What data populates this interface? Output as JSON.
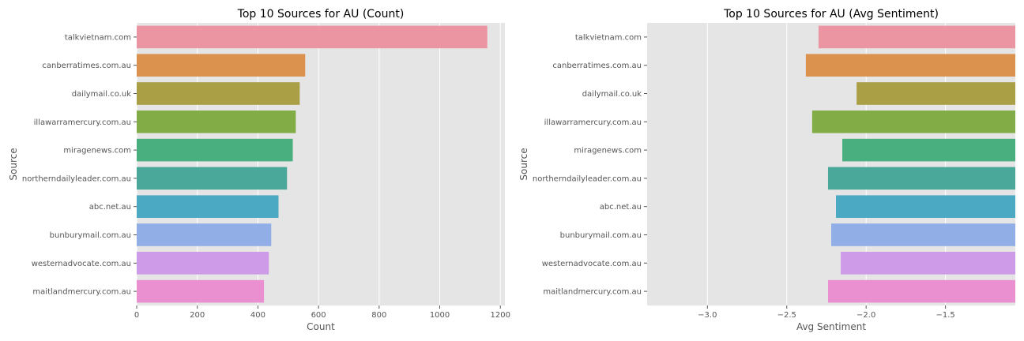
{
  "chart_data": [
    {
      "type": "bar",
      "orientation": "horizontal",
      "title": "Top 10 Sources for AU (Count)",
      "xlabel": "Count",
      "ylabel": "Source",
      "categories": [
        "talkvietnam.com",
        "canberratimes.com.au",
        "dailymail.co.uk",
        "illawarramercury.com.au",
        "miragenews.com",
        "northerndailyleader.com.au",
        "abc.net.au",
        "bunburymail.com.au",
        "westernadvocate.com.au",
        "maitlandmercury.com.au"
      ],
      "values": [
        1157,
        556,
        538,
        525,
        515,
        496,
        468,
        444,
        436,
        420
      ],
      "xlim": [
        0,
        1215
      ],
      "xticks": [
        0,
        200,
        400,
        600,
        800,
        1000,
        1200
      ],
      "xtick_labels": [
        "0",
        "200",
        "400",
        "600",
        "800",
        "1000",
        "1200"
      ],
      "grid": true,
      "colors": [
        "#ec95a2",
        "#dc924f",
        "#aa9f45",
        "#82ad46",
        "#4aaf7e",
        "#4aa89a",
        "#4ca9c4",
        "#92aee6",
        "#cd9be8",
        "#ea8fd0"
      ]
    },
    {
      "type": "bar",
      "orientation": "horizontal",
      "title": "Top 10 Sources for AU (Avg Sentiment)",
      "xlabel": "Avg Sentiment",
      "ylabel": "Source",
      "categories": [
        "talkvietnam.com",
        "canberratimes.com.au",
        "dailymail.co.uk",
        "illawarramercury.com.au",
        "miragenews.com",
        "northerndailyleader.com.au",
        "abc.net.au",
        "bunburymail.com.au",
        "westernadvocate.com.au",
        "maitlandmercury.com.au"
      ],
      "values": [
        -2.3,
        -2.38,
        -2.06,
        -2.34,
        -2.15,
        -2.24,
        -2.19,
        -2.22,
        -2.16,
        -2.24
      ],
      "xlim": [
        -3.38,
        -1.06
      ],
      "xticks": [
        -3.0,
        -2.5,
        -2.0,
        -1.5
      ],
      "xtick_labels": [
        "−3.0",
        "−2.5",
        "−2.0",
        "−1.5"
      ],
      "grid": true,
      "colors": [
        "#ec95a2",
        "#dc924f",
        "#aa9f45",
        "#82ad46",
        "#4aaf7e",
        "#4aa89a",
        "#4ca9c4",
        "#92aee6",
        "#cd9be8",
        "#ea8fd0"
      ]
    }
  ]
}
